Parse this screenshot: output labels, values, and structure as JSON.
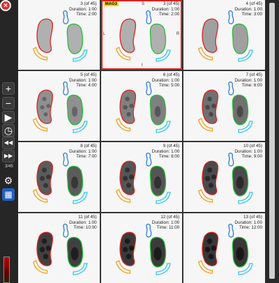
{
  "toolbar": {
    "close_icon": "close-icon",
    "buttons": [
      {
        "name": "zoom-in-icon",
        "glyph": "+"
      },
      {
        "name": "zoom-out-icon",
        "glyph": "−"
      },
      {
        "name": "play-icon",
        "glyph": "▶"
      },
      {
        "name": "clock-icon",
        "glyph": "◷"
      },
      {
        "name": "rewind-icon",
        "glyph": "◀◀"
      },
      {
        "name": "fast-forward-icon",
        "glyph": "▶▶"
      }
    ],
    "slice_label": "3/45",
    "bottom_buttons": [
      {
        "name": "settings-icon",
        "glyph": "⚙"
      },
      {
        "name": "layers-icon",
        "glyph": "▦"
      }
    ]
  },
  "frame_labels": {
    "duration": "Duration: 1:00"
  },
  "tag": "MAG3",
  "orientation": {
    "top": "S",
    "left": "L",
    "right": "R",
    "bottom": "I"
  },
  "frames": [
    {
      "frame": "3 (of 45)",
      "time": "Time: 2:00",
      "intensity": 0.15,
      "active": false
    },
    {
      "frame": "3 (of 45)",
      "time": "Time: 2:00",
      "intensity": 0.15,
      "active": true
    },
    {
      "frame": "4 (of 45)",
      "time": "Time: 3:00",
      "intensity": 0.25,
      "active": false
    },
    {
      "frame": "5 (of 45)",
      "time": "Time: 4:00",
      "intensity": 0.35,
      "active": false
    },
    {
      "frame": "6 (of 45)",
      "time": "Time: 5:00",
      "intensity": 0.45,
      "active": false
    },
    {
      "frame": "7 (of 45)",
      "time": "Time: 6:00",
      "intensity": 0.55,
      "active": false
    },
    {
      "frame": "8 (of 45)",
      "time": "Time: 7:00",
      "intensity": 0.68,
      "active": false
    },
    {
      "frame": "9 (of 45)",
      "time": "Time: 8:00",
      "intensity": 0.72,
      "active": false
    },
    {
      "frame": "10 (of 45)",
      "time": "Time: 9:00",
      "intensity": 0.78,
      "active": false
    },
    {
      "frame": "11 (of 45)",
      "time": "Time: 10:00",
      "intensity": 0.85,
      "active": false
    },
    {
      "frame": "12 (of 45)",
      "time": "Time: 11:00",
      "intensity": 0.88,
      "active": false
    },
    {
      "frame": "13 (of 45)",
      "time": "Time: 12:00",
      "intensity": 0.9,
      "active": false
    }
  ],
  "colors": {
    "left_kidney_roi": "#e02020",
    "right_kidney_roi": "#22c030",
    "bladder_roi": "#2a7ad8",
    "left_bkg_roi": "#f0a020",
    "right_bkg_roi": "#30c8e8",
    "active_border": "#d22222"
  }
}
